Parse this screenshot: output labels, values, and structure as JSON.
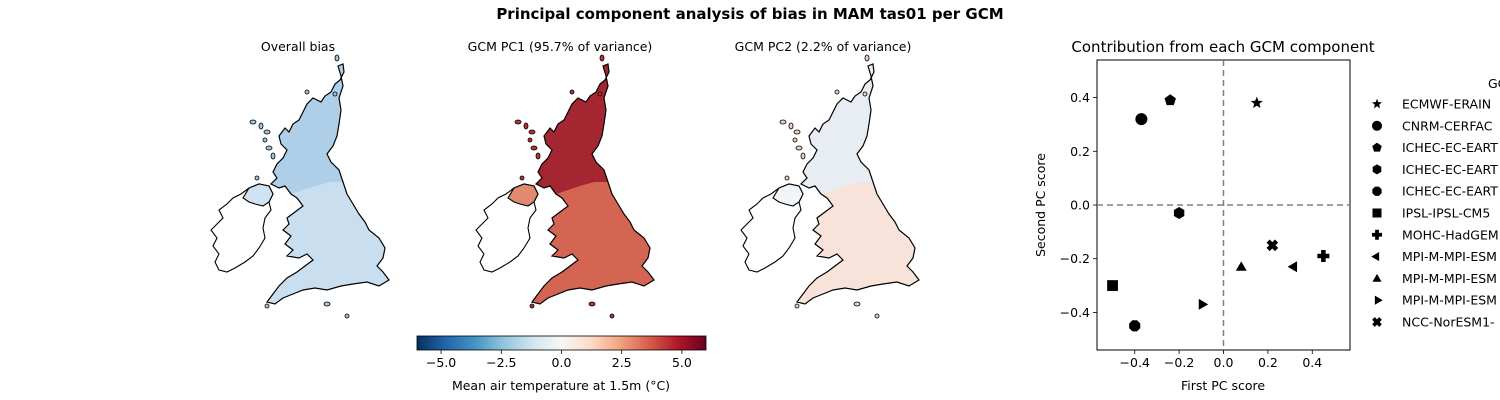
{
  "figure": {
    "title": "Principal component analysis of bias in MAM tas01 per GCM"
  },
  "maps": [
    {
      "title": "Overall bias",
      "fill": "#c9dff0",
      "edge": "#9fc6e2",
      "ni_fill": "#cfe2f2",
      "scot_fill": "#a9cde5",
      "mean": -1.2
    },
    {
      "title": "GCM PC1 (95.7% of variance)",
      "fill": "#d46552",
      "edge": "#b7332f",
      "ni_fill": "#e08a70",
      "scot_fill": "#9b1b2c",
      "mean": 3.6
    },
    {
      "title": "GCM PC2 (2.2% of variance)",
      "fill": "#f8e3da",
      "edge": "#f1d0c2",
      "ni_fill": "#f2f5f8",
      "scot_fill": "#e4eef6",
      "mean": 0.3
    }
  ],
  "colorbar": {
    "label": "Mean air temperature at 1.5m (°C)",
    "ticks": [
      "−5.0",
      "−2.5",
      "0.0",
      "2.5",
      "5.0"
    ],
    "tick_values": [
      -5,
      -2.5,
      0,
      2.5,
      5
    ],
    "range": [
      -6,
      6
    ],
    "colors": [
      "#053061",
      "#2166ac",
      "#4393c3",
      "#92c5de",
      "#d1e5f0",
      "#f7f7f7",
      "#fddbc7",
      "#f4a582",
      "#d6604d",
      "#b2182b",
      "#67001f"
    ]
  },
  "chart_data": {
    "type": "scatter",
    "title": "Contribution from each GCM component",
    "xlabel": "First PC score",
    "ylabel": "Second PC score",
    "xlim": [
      -0.57,
      0.57
    ],
    "ylim": [
      -0.54,
      0.54
    ],
    "xticks": [
      -0.4,
      -0.2,
      0.0,
      0.2,
      0.4
    ],
    "xtick_labels": [
      "−0.4",
      "−0.2",
      "0.0",
      "0.2",
      "0.4"
    ],
    "yticks": [
      -0.4,
      -0.2,
      0.0,
      0.2,
      0.4
    ],
    "ytick_labels": [
      "−0.4",
      "−0.2",
      "0.0",
      "0.2",
      "0.4"
    ],
    "reference_lines": {
      "x": 0,
      "y": 0,
      "style": "dashed",
      "color": "#808080"
    },
    "legend": {
      "title": "GC",
      "placement": "outside-right"
    },
    "points": [
      {
        "label": "ECMWF-ERAIN",
        "marker": "star",
        "x": 0.15,
        "y": 0.38
      },
      {
        "label": "CNRM-CERFAC",
        "marker": "circle",
        "x": -0.37,
        "y": 0.32
      },
      {
        "label": "ICHEC-EC-EART",
        "marker": "pentagon",
        "x": -0.24,
        "y": 0.39
      },
      {
        "label": "ICHEC-EC-EART",
        "marker": "hexagon",
        "x": -0.2,
        "y": -0.03
      },
      {
        "label": "ICHEC-EC-EART",
        "marker": "octagon",
        "x": -0.4,
        "y": -0.45
      },
      {
        "label": "IPSL-IPSL-CM5",
        "marker": "square",
        "x": -0.5,
        "y": -0.3
      },
      {
        "label": "MOHC-HadGEM",
        "marker": "plus",
        "x": 0.45,
        "y": -0.19
      },
      {
        "label": "MPI-M-MPI-ESM",
        "marker": "triangle-left",
        "x": 0.32,
        "y": -0.23
      },
      {
        "label": "MPI-M-MPI-ESM",
        "marker": "triangle-up",
        "x": 0.08,
        "y": -0.23
      },
      {
        "label": "MPI-M-MPI-ESM",
        "marker": "triangle-right",
        "x": -0.1,
        "y": -0.37
      },
      {
        "label": "NCC-NorESM1-",
        "marker": "x",
        "x": 0.22,
        "y": -0.15
      }
    ]
  }
}
